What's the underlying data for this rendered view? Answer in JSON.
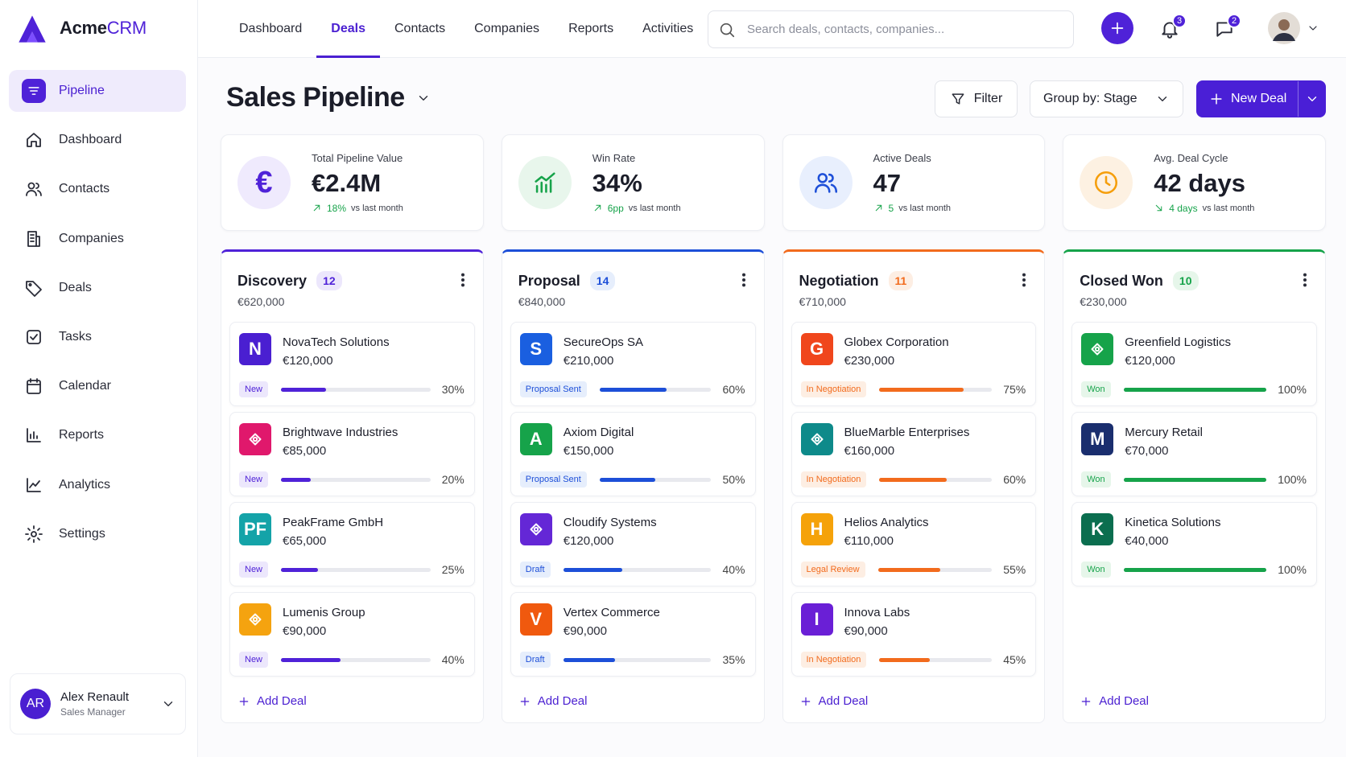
{
  "brand": {
    "name": "Acme",
    "suffix": "CRM"
  },
  "sidebar": {
    "nav": [
      {
        "label": "Pipeline",
        "active": true
      },
      {
        "label": "Dashboard"
      },
      {
        "label": "Contacts"
      },
      {
        "label": "Companies"
      },
      {
        "label": "Deals"
      },
      {
        "label": "Tasks"
      },
      {
        "label": "Calendar"
      },
      {
        "label": "Reports"
      },
      {
        "label": "Analytics"
      },
      {
        "label": "Settings"
      }
    ],
    "user": {
      "initials": "AR",
      "name": "Alex Renault",
      "role": "Sales Manager"
    }
  },
  "topbar": {
    "tabs": [
      {
        "label": "Dashboard"
      },
      {
        "label": "Deals",
        "active": true
      },
      {
        "label": "Contacts"
      },
      {
        "label": "Companies"
      },
      {
        "label": "Reports"
      },
      {
        "label": "Activities"
      }
    ],
    "search_placeholder": "Search deals, contacts, companies...",
    "notifications": "3",
    "messages": "2"
  },
  "header": {
    "title": "Sales Pipeline",
    "filter": "Filter",
    "group_by": "Group by: Stage",
    "new_deal": "New Deal"
  },
  "kpis": [
    {
      "label": "Total Pipeline Value",
      "value": "€2.4M",
      "delta": "18%",
      "note": "vs last month",
      "trend": "up",
      "icon": "€",
      "color": "#4f22d8",
      "tint": "#efeafd"
    },
    {
      "label": "Win Rate",
      "value": "34%",
      "delta": "6pp",
      "note": "vs last month",
      "trend": "up",
      "color": "#16a34a",
      "tint": "#e8f6ec"
    },
    {
      "label": "Active Deals",
      "value": "47",
      "delta": "5",
      "note": "vs last month",
      "trend": "up",
      "color": "#1d4fd8",
      "tint": "#e8effd"
    },
    {
      "label": "Avg. Deal Cycle",
      "value": "42 days",
      "delta": "4 days",
      "note": "vs last month",
      "trend": "down",
      "color": "#f59e0b",
      "tint": "#fdf1e2"
    }
  ],
  "columns": [
    {
      "name": "Discovery",
      "count": "12",
      "total": "€620,000",
      "color": "#4f22d8",
      "tint": "#ece7fc",
      "add_label": "Add Deal",
      "deals": [
        {
          "company": "NovaTech Solutions",
          "amount": "€120,000",
          "status": "New",
          "progress": "30%",
          "logo": "N",
          "logo_color": "#4a1fd1"
        },
        {
          "company": "Brightwave Industries",
          "amount": "€85,000",
          "status": "New",
          "progress": "20%",
          "logo_color": "#e0186c"
        },
        {
          "company": "PeakFrame GmbH",
          "amount": "€65,000",
          "status": "New",
          "progress": "25%",
          "logo": "PF",
          "logo_color": "#14a3a8"
        },
        {
          "company": "Lumenis Group",
          "amount": "€90,000",
          "status": "New",
          "progress": "40%",
          "logo_color": "#f5a30f"
        }
      ]
    },
    {
      "name": "Proposal",
      "count": "14",
      "total": "€840,000",
      "color": "#1d4fd8",
      "tint": "#e6eefc",
      "add_label": "Add Deal",
      "deals": [
        {
          "company": "SecureOps SA",
          "amount": "€210,000",
          "status": "Proposal Sent",
          "progress": "60%",
          "logo": "S",
          "logo_color": "#1a5fe0"
        },
        {
          "company": "Axiom Digital",
          "amount": "€150,000",
          "status": "Proposal Sent",
          "progress": "50%",
          "logo": "A",
          "logo_color": "#16a34a"
        },
        {
          "company": "Cloudify Systems",
          "amount": "€120,000",
          "status": "Draft",
          "progress": "40%",
          "logo_color": "#6427d6"
        },
        {
          "company": "Vertex Commerce",
          "amount": "€90,000",
          "status": "Draft",
          "progress": "35%",
          "logo": "V",
          "logo_color": "#f0590e"
        }
      ]
    },
    {
      "name": "Negotiation",
      "count": "11",
      "total": "€710,000",
      "color": "#f26b1d",
      "tint": "#fdeee3",
      "add_label": "Add Deal",
      "deals": [
        {
          "company": "Globex Corporation",
          "amount": "€230,000",
          "status": "In Negotiation",
          "progress": "75%",
          "logo": "G",
          "logo_color": "#f0461c"
        },
        {
          "company": "BlueMarble Enterprises",
          "amount": "€160,000",
          "status": "In Negotiation",
          "progress": "60%",
          "logo_color": "#0e8a8a"
        },
        {
          "company": "Helios Analytics",
          "amount": "€110,000",
          "status": "Legal Review",
          "progress": "55%",
          "logo": "H",
          "logo_color": "#f5a20a"
        },
        {
          "company": "Innova Labs",
          "amount": "€90,000",
          "status": "In Negotiation",
          "progress": "45%",
          "logo": "I",
          "logo_color": "#6a1fd6"
        }
      ]
    },
    {
      "name": "Closed Won",
      "count": "10",
      "total": "€230,000",
      "color": "#16a34a",
      "tint": "#e6f6ea",
      "add_label": "Add Deal",
      "deals": [
        {
          "company": "Greenfield Logistics",
          "amount": "€120,000",
          "status": "Won",
          "progress": "100%",
          "logo_color": "#16a34a"
        },
        {
          "company": "Mercury Retail",
          "amount": "€70,000",
          "status": "Won",
          "progress": "100%",
          "logo": "M",
          "logo_color": "#1a2e6e"
        },
        {
          "company": "Kinetica Solutions",
          "amount": "€40,000",
          "status": "Won",
          "progress": "100%",
          "logo": "K",
          "logo_color": "#0b6e4f"
        }
      ]
    }
  ]
}
